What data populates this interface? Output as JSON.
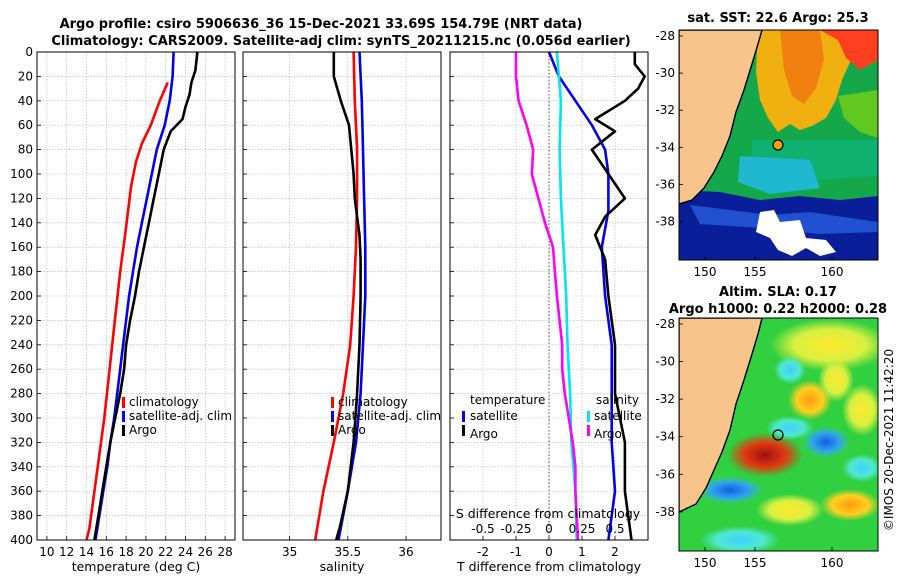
{
  "title": {
    "line1": "Argo profile: csiro 5906636_36 15-Dec-2021 33.69S 154.79E (NRT data)",
    "line2": "Climatology: CARS2009. Satellite-adj clim: synTS_20211215.nc (0.056d earlier)"
  },
  "colors": {
    "climatology": "#ff0000",
    "satellite": "#0000ee",
    "argo": "#000000",
    "magenta": "#ff00ff",
    "cyan": "#00e5ee"
  },
  "chart_data": [
    {
      "type": "line",
      "name": "temperature",
      "xlabel": "temperature (deg C)",
      "ylabel": "",
      "xlim": [
        9,
        29
      ],
      "ylim": [
        400,
        0
      ],
      "xticks": [
        10,
        12,
        14,
        16,
        18,
        20,
        22,
        24,
        26,
        28
      ],
      "yticks": [
        0,
        20,
        40,
        60,
        80,
        100,
        120,
        140,
        160,
        180,
        200,
        220,
        240,
        260,
        280,
        300,
        320,
        340,
        360,
        380,
        400
      ],
      "series": [
        {
          "name": "climatology",
          "color": "#ff0000",
          "depth": [
            25,
            40,
            60,
            75,
            90,
            110,
            130,
            150,
            180,
            210,
            240,
            270,
            300,
            330,
            360,
            390,
            400
          ],
          "values": [
            22.2,
            21.4,
            20.5,
            19.6,
            19.0,
            18.5,
            18.2,
            17.9,
            17.4,
            17.0,
            16.6,
            16.2,
            15.8,
            15.3,
            14.8,
            14.3,
            14.0
          ]
        },
        {
          "name": "satellite-adj. clim",
          "color": "#0000ee",
          "depth": [
            0,
            20,
            40,
            60,
            80,
            100,
            120,
            140,
            160,
            180,
            200,
            220,
            240,
            260,
            280,
            300,
            320,
            340,
            360,
            380,
            400
          ],
          "values": [
            22.8,
            22.7,
            22.4,
            21.9,
            21.1,
            20.6,
            20.1,
            19.6,
            19.1,
            18.7,
            18.3,
            18.0,
            17.7,
            17.4,
            17.1,
            16.8,
            16.4,
            16.1,
            15.7,
            15.3,
            14.9
          ]
        },
        {
          "name": "Argo",
          "color": "#000000",
          "depth": [
            0,
            15,
            25,
            35,
            45,
            55,
            65,
            80,
            100,
            120,
            140,
            160,
            180,
            200,
            220,
            240,
            260,
            280,
            300,
            320,
            340,
            360,
            380,
            400
          ],
          "values": [
            25.2,
            25.0,
            24.6,
            24.4,
            24.0,
            23.7,
            22.5,
            21.8,
            21.3,
            20.8,
            20.3,
            19.8,
            19.3,
            18.9,
            18.4,
            18.0,
            17.8,
            17.4,
            16.9,
            16.4,
            16.0,
            15.6,
            15.2,
            14.8
          ]
        }
      ],
      "legend": [
        "climatology",
        "satellite-adj. clim",
        "Argo"
      ]
    },
    {
      "type": "line",
      "name": "salinity",
      "xlabel": "salinity",
      "xlim": [
        34.6,
        36.3
      ],
      "ylim": [
        400,
        0
      ],
      "xticks": [
        35,
        35.5,
        36
      ],
      "series": [
        {
          "name": "climatology",
          "color": "#ff0000",
          "depth": [
            0,
            40,
            80,
            120,
            160,
            200,
            240,
            280,
            320,
            360,
            400
          ],
          "values": [
            35.55,
            35.56,
            35.58,
            35.58,
            35.57,
            35.55,
            35.52,
            35.46,
            35.38,
            35.29,
            35.22
          ]
        },
        {
          "name": "satellite-adj. clim",
          "color": "#0000ee",
          "depth": [
            0,
            40,
            80,
            120,
            160,
            200,
            240,
            280,
            320,
            360,
            400
          ],
          "values": [
            35.6,
            35.62,
            35.63,
            35.64,
            35.65,
            35.65,
            35.63,
            35.61,
            35.57,
            35.5,
            35.42
          ]
        },
        {
          "name": "Argo",
          "color": "#000000",
          "depth": [
            0,
            20,
            40,
            60,
            80,
            100,
            120,
            135,
            150,
            170,
            200,
            240,
            280,
            320,
            360,
            390,
            400
          ],
          "values": [
            35.38,
            35.38,
            35.44,
            35.51,
            35.53,
            35.55,
            35.56,
            35.58,
            35.6,
            35.61,
            35.61,
            35.6,
            35.58,
            35.55,
            35.5,
            35.43,
            35.4
          ]
        }
      ],
      "legend": [
        "climatology",
        "satellite-adj. clim",
        "Argo"
      ]
    },
    {
      "type": "line",
      "name": "difference",
      "xlabel": "T difference from climatology",
      "xlim": [
        -3,
        3
      ],
      "ylim": [
        400,
        0
      ],
      "xticks": [
        -2,
        -1,
        0,
        1,
        2
      ],
      "xticklabels": [
        "-2",
        "-1",
        "0",
        "1",
        "2"
      ],
      "top_axis_label": "S difference from climatology",
      "top_ticks": [
        "-0.5",
        "-0.25",
        "0",
        "0.25",
        "0.5"
      ],
      "legend_left_title": "temperature",
      "legend_right_title": "salinity",
      "legend": [
        "satellite",
        "Argo",
        "satellite",
        "Argo"
      ],
      "series": [
        {
          "name": "T satellite - clim",
          "color": "#0000ee",
          "depth": [
            0,
            20,
            40,
            60,
            80,
            100,
            130,
            160,
            200,
            240,
            280,
            320,
            360,
            400
          ],
          "values": [
            0.0,
            0.3,
            0.8,
            1.3,
            1.7,
            1.8,
            1.8,
            1.6,
            1.7,
            1.9,
            1.9,
            1.9,
            2.0,
            1.8
          ]
        },
        {
          "name": "T Argo - clim",
          "color": "#000000",
          "depth": [
            0,
            10,
            20,
            30,
            40,
            55,
            65,
            80,
            100,
            120,
            135,
            150,
            170,
            200,
            240,
            280,
            320,
            360,
            400
          ],
          "values": [
            2.6,
            2.6,
            2.9,
            2.7,
            2.3,
            1.4,
            2.0,
            1.3,
            1.8,
            2.3,
            1.7,
            1.4,
            1.7,
            1.8,
            2.0,
            2.0,
            2.3,
            2.3,
            2.5
          ]
        },
        {
          "name": "S satellite - clim",
          "color": "#00e5ee",
          "depth": [
            0,
            40,
            80,
            120,
            160,
            200,
            240,
            280,
            320,
            360,
            400
          ],
          "values": [
            0.06,
            0.09,
            0.08,
            0.09,
            0.11,
            0.13,
            0.14,
            0.16,
            0.17,
            0.2,
            0.21
          ]
        },
        {
          "name": "S Argo - clim",
          "color": "#ff00ff",
          "depth": [
            0,
            20,
            40,
            60,
            80,
            100,
            120,
            140,
            160,
            200,
            240,
            260,
            280,
            320,
            340,
            360,
            400
          ],
          "values": [
            -0.25,
            -0.25,
            -0.23,
            -0.17,
            -0.12,
            -0.13,
            -0.08,
            -0.03,
            0.03,
            0.06,
            0.1,
            0.1,
            0.12,
            0.18,
            0.2,
            0.2,
            0.22
          ]
        }
      ]
    }
  ],
  "maps": {
    "sst": {
      "title": "sat. SST: 22.6 Argo: 25.3",
      "xticks": [
        "150",
        "155",
        "160"
      ],
      "yticks": [
        "-28",
        "-30",
        "-32",
        "-34",
        "-36",
        "-38"
      ]
    },
    "sla": {
      "title1": "Altim. SLA: 0.17",
      "title2": "Argo h1000: 0.22 h2000: 0.28",
      "xticks": [
        "150",
        "155",
        "160"
      ],
      "yticks": [
        "-28",
        "-30",
        "-32",
        "-34",
        "-36",
        "-38"
      ]
    }
  },
  "watermark": "©IMOS 20-Dec-2021 11:42:20"
}
